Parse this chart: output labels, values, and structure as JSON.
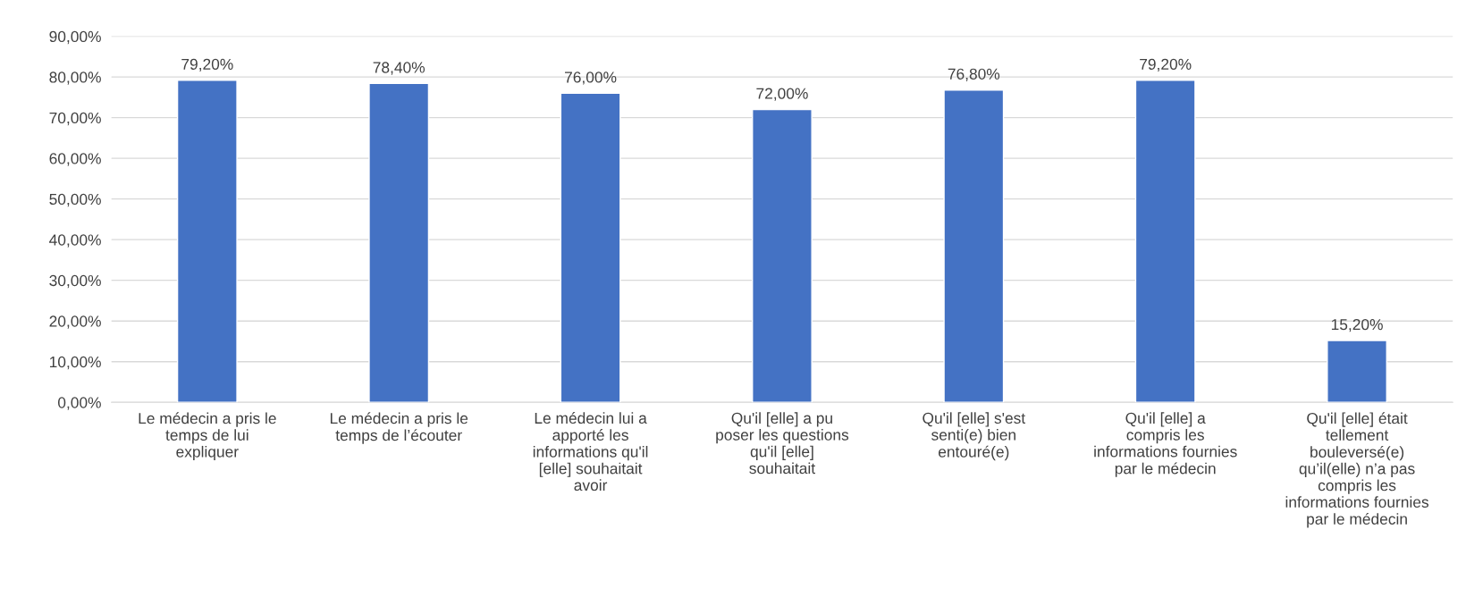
{
  "chart_data": {
    "type": "bar",
    "categories": [
      "Le médecin a pris le temps de lui expliquer",
      "Le médecin a pris le temps de l’écouter",
      "Le médecin lui a apporté les informations qu'il [elle] souhaitait avoir",
      "Qu'il [elle] a pu poser les questions qu'il [elle] souhaitait",
      "Qu'il [elle] s'est senti(e) bien entouré(e)",
      "Qu'il [elle] a compris les informations fournies par le médecin",
      "Qu'il [elle] était tellement bouleversé(e) qu’il(elle) n’a pas compris les informations fournies par le médecin"
    ],
    "values": [
      79.2,
      78.4,
      76.0,
      72.0,
      76.8,
      79.2,
      15.2
    ],
    "value_labels": [
      "79,20%",
      "78,40%",
      "76,00%",
      "72,00%",
      "76,80%",
      "79,20%",
      "15,20%"
    ],
    "color": "#4472c4",
    "ylim": [
      0,
      90
    ],
    "yticks": [
      {
        "value": 0,
        "label": "0,00%"
      },
      {
        "value": 10,
        "label": "10,00%"
      },
      {
        "value": 20,
        "label": "20,00%"
      },
      {
        "value": 30,
        "label": "30,00%"
      },
      {
        "value": 40,
        "label": "40,00%"
      },
      {
        "value": 50,
        "label": "50,00%"
      },
      {
        "value": 60,
        "label": "60,00%"
      },
      {
        "value": 70,
        "label": "70,00%"
      },
      {
        "value": 80,
        "label": "80,00%"
      },
      {
        "value": 90,
        "label": "90,00%"
      }
    ],
    "grid": "y",
    "legend": false
  }
}
